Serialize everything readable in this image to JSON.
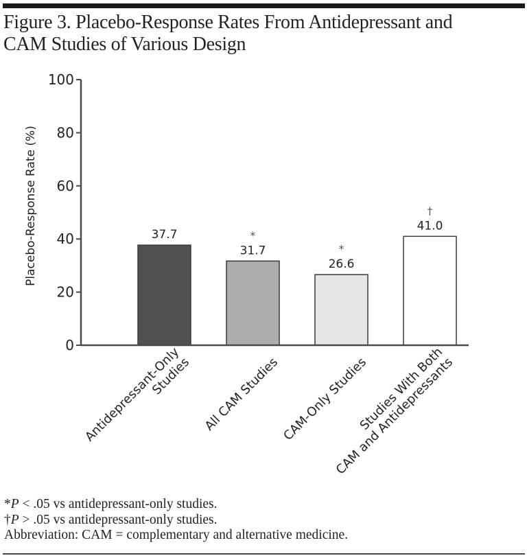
{
  "figure": {
    "title_line1": "Figure 3. Placebo-Response Rates From Antidepressant and",
    "title_line2": "CAM Studies of Various Design"
  },
  "chart_data": {
    "type": "bar",
    "title": "Placebo-Response Rates From Antidepressant and CAM Studies of Various Design",
    "xlabel": "",
    "ylabel": "Placebo-Response Rate (%)",
    "ylim": [
      0,
      100
    ],
    "yticks": [
      0,
      20,
      40,
      60,
      80,
      100
    ],
    "grid": false,
    "categories": [
      "Antidepressant-Only Studies",
      "All CAM Studies",
      "CAM-Only Studies",
      "Studies With Both CAM and Antidepressants"
    ],
    "category_label_lines": [
      [
        "Antidepressant-Only",
        "Studies"
      ],
      [
        "All CAM Studies"
      ],
      [
        "CAM-Only Studies"
      ],
      [
        "Studies With Both",
        "CAM and Antidepressants"
      ]
    ],
    "values": [
      37.7,
      31.7,
      26.6,
      41.0
    ],
    "value_labels": [
      "37.7",
      "31.7",
      "26.6",
      "41.0"
    ],
    "significance_markers": [
      "",
      "*",
      "*",
      "†"
    ],
    "bar_colors": [
      "#505050",
      "#adadad",
      "#e6e6e6",
      "#ffffff"
    ]
  },
  "footnotes": {
    "note1_symbol": "*",
    "note1_p": "P",
    "note1_rest": " < .05 vs antidepressant-only studies.",
    "note2_symbol": "†",
    "note2_p": "P",
    "note2_rest": " > .05 vs antidepressant-only studies.",
    "abbreviation": "Abbreviation: CAM = complementary and alternative medicine."
  }
}
